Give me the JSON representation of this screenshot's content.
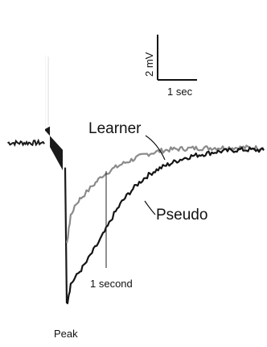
{
  "chart_data": {
    "type": "line",
    "x_unit": "sec",
    "y_unit": "mV",
    "scale_bar": {
      "y_value": 2,
      "y_label": "2 mV",
      "x_value": 1,
      "x_label": "1 sec"
    },
    "annotations": {
      "peak_label": "Peak",
      "time_marker_label": "1 second",
      "time_marker_x": 1.0
    },
    "series": [
      {
        "name": "Learner",
        "color": "#8a8a8a",
        "points": [
          [
            0.0,
            -7.3
          ],
          [
            0.03,
            -6.9
          ],
          [
            0.05,
            -6.2
          ],
          [
            0.1,
            -5.4
          ],
          [
            0.2,
            -4.6
          ],
          [
            0.3,
            -4.2
          ],
          [
            0.4,
            -3.9
          ],
          [
            0.5,
            -3.6
          ],
          [
            0.6,
            -3.3
          ],
          [
            0.7,
            -3.0
          ],
          [
            0.8,
            -2.7
          ],
          [
            0.9,
            -2.4
          ],
          [
            1.0,
            -2.2
          ],
          [
            1.2,
            -1.85
          ],
          [
            1.4,
            -1.55
          ],
          [
            1.6,
            -1.3
          ],
          [
            1.8,
            -1.05
          ],
          [
            2.0,
            -0.85
          ],
          [
            2.2,
            -0.7
          ],
          [
            2.4,
            -0.58
          ],
          [
            2.6,
            -0.5
          ],
          [
            2.8,
            -0.45
          ],
          [
            3.0,
            -0.42
          ],
          [
            3.2,
            -0.4
          ],
          [
            3.4,
            -0.38
          ],
          [
            3.6,
            -0.37
          ],
          [
            3.8,
            -0.36
          ],
          [
            4.0,
            -0.35
          ],
          [
            4.2,
            -0.35
          ],
          [
            4.4,
            -0.35
          ],
          [
            4.6,
            -0.35
          ],
          [
            4.8,
            -0.36
          ],
          [
            5.0,
            -0.37
          ]
        ]
      },
      {
        "name": "Pseudo",
        "color": "#141414",
        "points": [
          [
            0.0,
            -11.4
          ],
          [
            0.02,
            -11.7
          ],
          [
            0.05,
            -11.1
          ],
          [
            0.1,
            -10.3
          ],
          [
            0.2,
            -9.9
          ],
          [
            0.3,
            -9.5
          ],
          [
            0.4,
            -9.1
          ],
          [
            0.5,
            -8.7
          ],
          [
            0.6,
            -8.2
          ],
          [
            0.8,
            -7.3
          ],
          [
            1.0,
            -6.3
          ],
          [
            1.2,
            -5.2
          ],
          [
            1.4,
            -4.3
          ],
          [
            1.6,
            -3.6
          ],
          [
            1.8,
            -3.0
          ],
          [
            2.0,
            -2.5
          ],
          [
            2.2,
            -2.1
          ],
          [
            2.4,
            -1.8
          ],
          [
            2.6,
            -1.55
          ],
          [
            2.8,
            -1.3
          ],
          [
            3.0,
            -1.1
          ],
          [
            3.2,
            -0.95
          ],
          [
            3.4,
            -0.85
          ],
          [
            3.6,
            -0.75
          ],
          [
            3.8,
            -0.65
          ],
          [
            4.0,
            -0.6
          ],
          [
            4.2,
            -0.55
          ],
          [
            4.4,
            -0.5
          ],
          [
            4.6,
            -0.5
          ],
          [
            4.8,
            -0.52
          ],
          [
            5.0,
            -0.55
          ]
        ]
      }
    ],
    "baseline": {
      "x_range": [
        -1.5,
        -0.55
      ],
      "level": 0.0
    },
    "stimulus": {
      "x_range": [
        -0.55,
        0.0
      ],
      "top_level": 6.4,
      "bottom_level": -0.4
    }
  }
}
